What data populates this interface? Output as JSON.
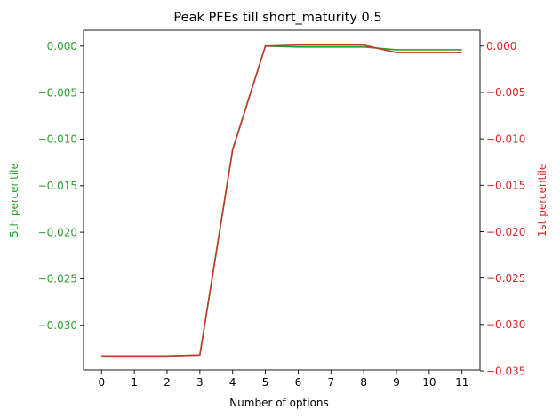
{
  "chart_data": {
    "type": "line",
    "title": "Peak PFEs till short_maturity 0.5",
    "xlabel": "Number of options",
    "x": [
      0,
      1,
      2,
      3,
      4,
      5,
      6,
      7,
      8,
      9,
      10,
      11
    ],
    "xlim": [
      -0.55,
      11.55
    ],
    "x_ticks": [
      "0",
      "1",
      "2",
      "3",
      "4",
      "5",
      "6",
      "7",
      "8",
      "9",
      "10",
      "11"
    ],
    "y_left": {
      "label": "5th percentile",
      "color": "#2ca02c",
      "ylim": [
        -0.0348,
        0.0017
      ],
      "ticks": [
        0.0,
        -0.005,
        -0.01,
        -0.015,
        -0.02,
        -0.025,
        -0.03
      ],
      "tick_labels": [
        "0.000",
        "−0.005",
        "−0.010",
        "−0.015",
        "−0.020",
        "−0.025",
        "−0.030"
      ]
    },
    "y_right": {
      "label": "1st percentile",
      "color": "#d62728",
      "ylim": [
        -0.0349,
        0.0017
      ],
      "ticks": [
        0.0,
        -0.005,
        -0.01,
        -0.015,
        -0.02,
        -0.025,
        -0.03,
        -0.035
      ],
      "tick_labels": [
        "0.000",
        "−0.005",
        "−0.010",
        "−0.015",
        "−0.020",
        "−0.025",
        "−0.030",
        "−0.035"
      ]
    },
    "series": [
      {
        "axis": "left",
        "color": "#2ca02c",
        "values": [
          -0.0333,
          -0.0333,
          -0.0333,
          -0.0332,
          -0.0111,
          0.0,
          -0.0001,
          -0.0001,
          -0.0001,
          -0.0004,
          -0.0004,
          -0.0004
        ]
      },
      {
        "axis": "right",
        "color": "#c0392b",
        "values": [
          -0.0334,
          -0.0334,
          -0.0334,
          -0.0333,
          -0.0112,
          0.0,
          0.0001,
          0.0001,
          0.0001,
          -0.0007,
          -0.0007,
          -0.0007
        ]
      }
    ]
  }
}
